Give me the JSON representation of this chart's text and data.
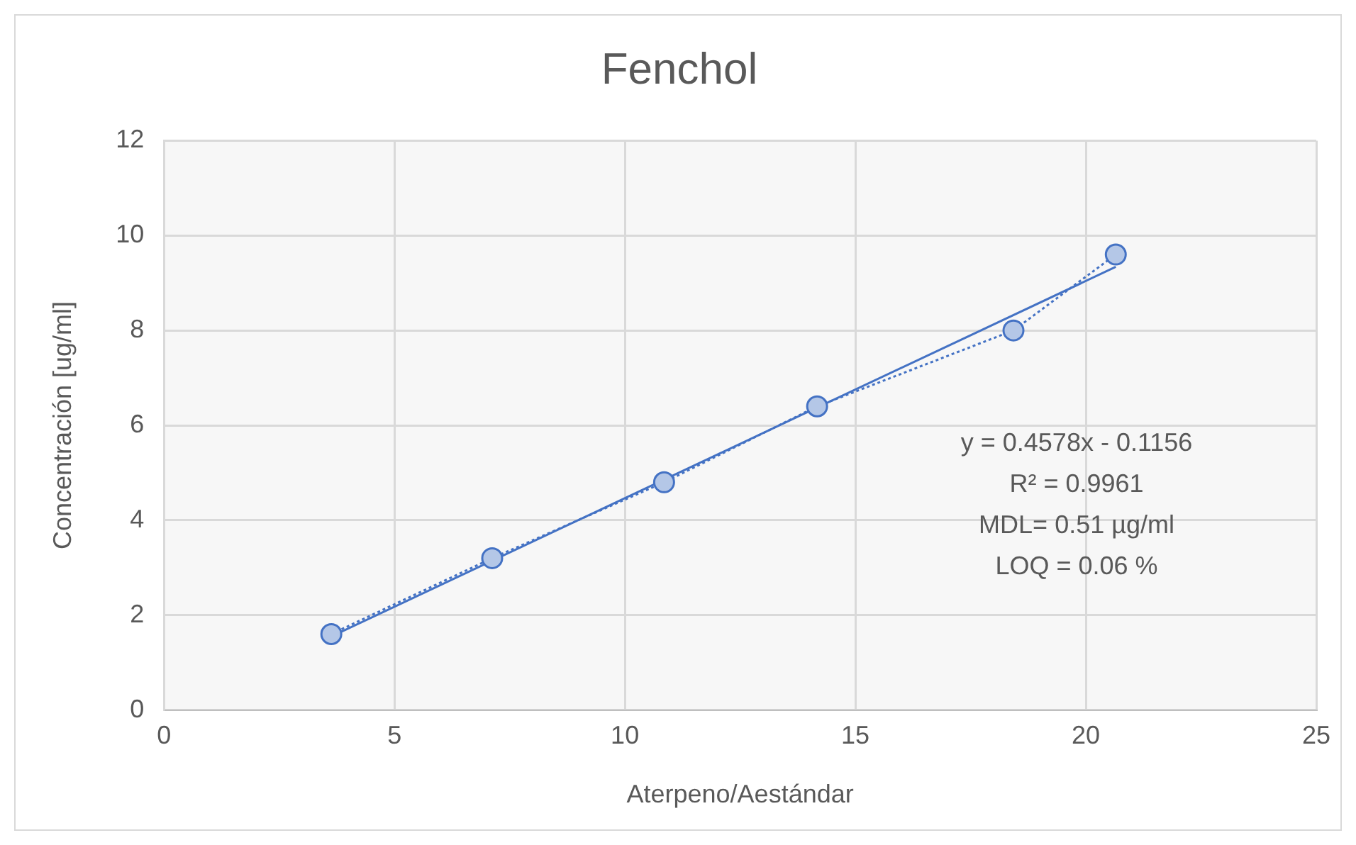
{
  "chart_data": {
    "type": "line",
    "title": "Fenchol",
    "xlabel": "Aterpeno/Aestándar",
    "ylabel": "Concentración [ug/ml]",
    "xlim": [
      0,
      25
    ],
    "xticks": [
      0,
      5,
      10,
      15,
      20,
      25
    ],
    "ylim": [
      0,
      12
    ],
    "yticks": [
      0,
      2,
      4,
      6,
      8,
      10,
      12
    ],
    "grid": true,
    "legend": false,
    "series": [
      {
        "type": "line",
        "color": "#4472c4",
        "x": [
          3.63,
          7.12,
          10.85,
          14.17,
          18.43,
          20.65
        ],
        "values": [
          1.6,
          3.2,
          4.8,
          6.4,
          8.0,
          9.6
        ],
        "marker": "circle",
        "line_style": "dotted"
      },
      {
        "type": "line",
        "color": "#4472c4",
        "x": [
          3.63,
          20.65
        ],
        "values": [
          1.55,
          9.34
        ],
        "marker": "none",
        "line_style": "solid"
      }
    ],
    "annotations": [
      "y = 0.4578x - 0.1156",
      "R² = 0.9961",
      "MDL= 0.51 µg/ml",
      "LOQ = 0.06 %"
    ]
  }
}
